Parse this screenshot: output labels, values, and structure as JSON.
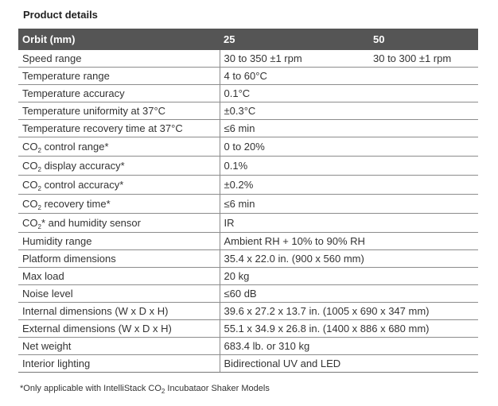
{
  "title": "Product details",
  "table": {
    "header": [
      "Orbit (mm)",
      "25",
      "50"
    ],
    "rows": [
      {
        "label": "Speed range",
        "v25": "30 to 350 ±1 rpm",
        "v50": "30 to 300 ±1 rpm"
      },
      {
        "label": "Temperature range",
        "v25": "4 to 60°C",
        "v50": ""
      },
      {
        "label": "Temperature accuracy",
        "v25": "0.1°C",
        "v50": ""
      },
      {
        "label": "Temperature uniformity at 37°C",
        "v25": "±0.3°C",
        "v50": ""
      },
      {
        "label": "Temperature recovery time at 37°C",
        "v25": "≤6 min",
        "v50": ""
      },
      {
        "label_pre": "CO",
        "label_sub": "2",
        "label_post": " control range*",
        "v25": "0 to 20%",
        "v50": ""
      },
      {
        "label_pre": "CO",
        "label_sub": "2",
        "label_post": " display accuracy*",
        "v25": "0.1%",
        "v50": ""
      },
      {
        "label_pre": "CO",
        "label_sub": "2",
        "label_post": " control accuracy*",
        "v25": "±0.2%",
        "v50": ""
      },
      {
        "label_pre": "CO",
        "label_sub": "2",
        "label_post": " recovery time*",
        "v25": "≤6 min",
        "v50": ""
      },
      {
        "label_pre": "CO",
        "label_sub": "2",
        "label_post": "* and humidity sensor",
        "v25": "IR",
        "v50": ""
      },
      {
        "label": "Humidity range",
        "v25": "Ambient RH + 10% to 90% RH",
        "v50": ""
      },
      {
        "label": "Platform dimensions",
        "v25": "35.4 x 22.0 in. (900 x 560 mm)",
        "v50": ""
      },
      {
        "label": "Max load",
        "v25": "20 kg",
        "v50": ""
      },
      {
        "label": "Noise level",
        "v25": "≤60 dB",
        "v50": ""
      },
      {
        "label": "Internal dimensions (W x D x H)",
        "v25": "39.6 x 27.2 x 13.7 in. (1005 x 690 x 347 mm)",
        "v50": ""
      },
      {
        "label": "External dimensions (W x D x H)",
        "v25": "55.1 x 34.9 x 26.8 in. (1400 x 886 x 680 mm)",
        "v50": ""
      },
      {
        "label": "Net weight",
        "v25": "683.4 lb. or 310 kg",
        "v50": ""
      },
      {
        "label": "Interior lighting",
        "v25": "Bidirectional UV and LED",
        "v50": ""
      }
    ]
  },
  "footnote": {
    "pre": "*Only applicable with IntelliStack CO",
    "sub": "2",
    "post": " Incubataor Shaker Models"
  }
}
